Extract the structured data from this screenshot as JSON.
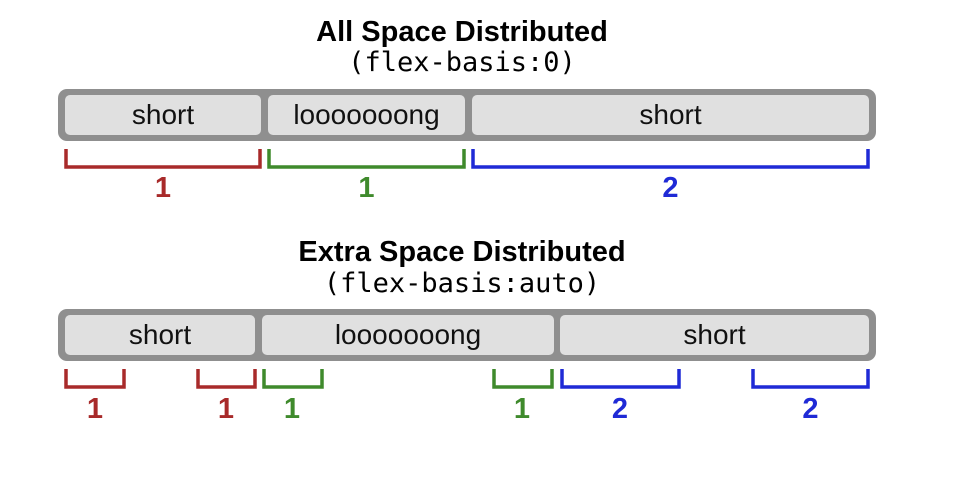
{
  "colors": {
    "red": "#a82a2a",
    "green": "#3f8a2c",
    "blue": "#1f2ad6",
    "container": "#8f8f8f",
    "item": "#e0e0e0"
  },
  "panels": [
    {
      "title": "All Space Distributed",
      "subtitle": "(flex-basis:0)",
      "items": [
        {
          "label": "short"
        },
        {
          "label": "looooooong"
        },
        {
          "label": "short"
        }
      ],
      "brackets": [
        {
          "label": "1",
          "color": "red"
        },
        {
          "label": "1",
          "color": "green"
        },
        {
          "label": "2",
          "color": "blue"
        }
      ]
    },
    {
      "title": "Extra Space Distributed",
      "subtitle": "(flex-basis:auto)",
      "items": [
        {
          "label": "short"
        },
        {
          "label": "looooooong"
        },
        {
          "label": "short"
        }
      ],
      "brackets": [
        {
          "label": "1",
          "color": "red"
        },
        {
          "label": "1",
          "color": "red"
        },
        {
          "label": "1",
          "color": "green"
        },
        {
          "label": "1",
          "color": "green"
        },
        {
          "label": "2",
          "color": "blue"
        },
        {
          "label": "2",
          "color": "blue"
        }
      ]
    }
  ]
}
